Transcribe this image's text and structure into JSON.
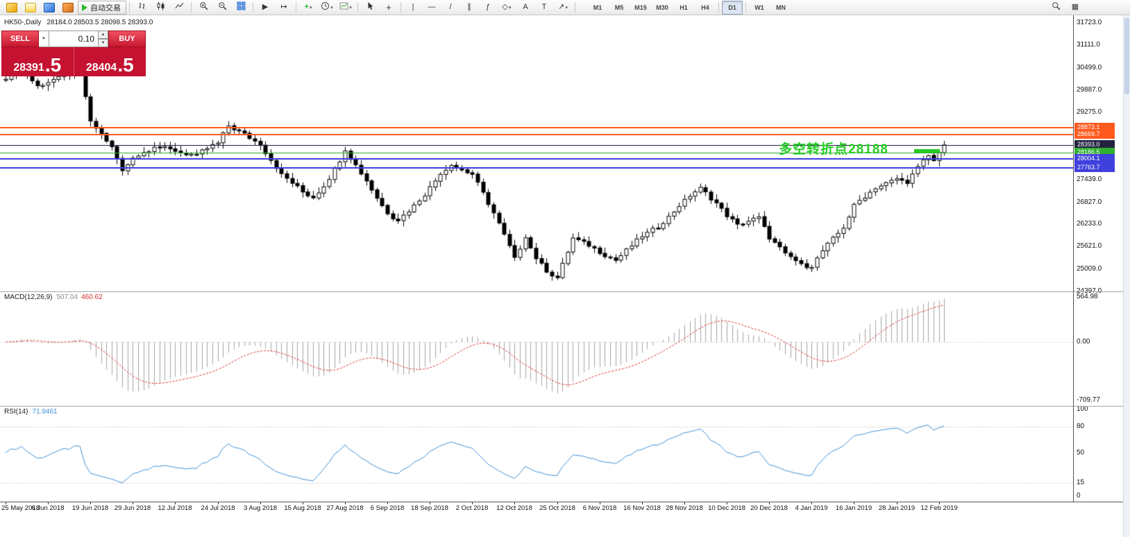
{
  "toolbar": {
    "buttons": [
      {
        "name": "new-order",
        "type": "ci",
        "cls": "ci-gold"
      },
      {
        "name": "charts",
        "type": "ci",
        "cls": "ci-chart"
      },
      {
        "name": "market-watch",
        "type": "ci",
        "cls": "ci-blue"
      },
      {
        "name": "navigator",
        "type": "ci",
        "cls": "ci-mix"
      },
      {
        "name": "autotrading",
        "type": "autotrade",
        "label": "自动交易"
      },
      {
        "type": "sep"
      },
      {
        "name": "bar-chart",
        "type": "svg",
        "icon": "bars"
      },
      {
        "name": "candlestick-chart",
        "type": "svg",
        "icon": "candles"
      },
      {
        "name": "line-chart",
        "type": "svg",
        "icon": "line"
      },
      {
        "type": "sep"
      },
      {
        "name": "zoom-in",
        "type": "svg",
        "icon": "zoomin"
      },
      {
        "name": "zoom-out",
        "type": "svg",
        "icon": "zoomout"
      },
      {
        "name": "tile-windows",
        "type": "svg",
        "icon": "grid"
      },
      {
        "type": "sep"
      },
      {
        "name": "auto-scroll",
        "type": "glyph",
        "glyph": "▶"
      },
      {
        "name": "chart-shift",
        "type": "glyph",
        "glyph": "↦"
      },
      {
        "type": "sep"
      },
      {
        "name": "indicators",
        "type": "glyph",
        "glyph": "+",
        "color": "#2db82d",
        "bold": true,
        "dd": true
      },
      {
        "name": "periods",
        "type": "svg",
        "icon": "clock",
        "dd": true
      },
      {
        "name": "templates",
        "type": "svg",
        "icon": "template",
        "dd": true
      },
      {
        "type": "sep"
      },
      {
        "name": "cursor",
        "type": "svg",
        "icon": "cursor"
      },
      {
        "name": "crosshair",
        "type": "glyph",
        "glyph": "+",
        "big": true
      },
      {
        "type": "sep"
      },
      {
        "name": "vertical-line",
        "type": "glyph",
        "glyph": "|"
      },
      {
        "name": "horizontal-line",
        "type": "glyph",
        "glyph": "—"
      },
      {
        "name": "trendline",
        "type": "glyph",
        "glyph": "/"
      },
      {
        "name": "equidistant-channel",
        "type": "glyph",
        "glyph": "∥"
      },
      {
        "name": "fibonacci",
        "type": "glyph",
        "glyph": "ƒ"
      },
      {
        "name": "shapes",
        "type": "glyph",
        "glyph": "◇",
        "dd": true
      },
      {
        "name": "text",
        "type": "glyph",
        "glyph": "A"
      },
      {
        "name": "text-label",
        "type": "glyph",
        "glyph": "T"
      },
      {
        "name": "arrows",
        "type": "glyph",
        "glyph": "↗",
        "dd": true
      },
      {
        "type": "sep"
      }
    ],
    "timeframes": [
      "M1",
      "M5",
      "M15",
      "M30",
      "H1",
      "H4",
      "D1",
      "W1",
      "MN"
    ],
    "active_timeframe": "D1",
    "right_buttons": [
      {
        "name": "search",
        "type": "svg",
        "icon": "search"
      },
      {
        "name": "data-window",
        "type": "glyph",
        "glyph": "▦"
      }
    ]
  },
  "chart": {
    "info": {
      "symbol_period": "HK50-,Daily",
      "ohlc": "28184.0 28503.5 28098.5 28393.0"
    },
    "price_axis_labels": [
      "31723.0",
      "31111.0",
      "30499.0",
      "29887.0",
      "29275.0",
      "27439.0",
      "26827.0",
      "26233.0",
      "25621.0",
      "25009.0",
      "24397.0"
    ],
    "levels": [
      {
        "label": "28873.1",
        "price": 28873.1,
        "color": "#ff5a1e",
        "width": 2
      },
      {
        "label": "28669.7",
        "price": 28669.7,
        "color": "#ff5a1e",
        "width": 2
      },
      {
        "label": "28393.0",
        "price": 28393.0,
        "color": "#23233f",
        "width": 1,
        "is_current_price": true
      },
      {
        "label": "28186.5",
        "price": 28186.5,
        "color": "#2fae2f",
        "width": 1
      },
      {
        "label": "28004.1",
        "price": 28004.1,
        "color": "#4040dd",
        "width": 2
      },
      {
        "label": "27763.7",
        "price": 27763.7,
        "color": "#4040dd",
        "width": 2
      }
    ],
    "annotation": {
      "text": "多空转折点28188",
      "color": "#25cc25"
    }
  },
  "trade_panel": {
    "sell_label": "SELL",
    "buy_label": "BUY",
    "volume": "0.10",
    "sell_price_main": "28391",
    "sell_price_pips": ".5",
    "buy_price_main": "28404",
    "buy_price_pips": ".5",
    "panel_color": "#c41230"
  },
  "chart_data": {
    "type": "candlestick",
    "symbol": "HK50-",
    "period": "Daily",
    "last_bar_ohlc": {
      "open": 28184.0,
      "high": 28503.5,
      "low": 28098.5,
      "close": 28393.0
    },
    "price_axis": {
      "min": 24397.0,
      "max": 31723.0
    },
    "visible_bars": 178,
    "bars_per_date_tick": 8,
    "close_anchors": [
      [
        0,
        30200
      ],
      [
        3,
        30420
      ],
      [
        6,
        30020
      ],
      [
        10,
        30230
      ],
      [
        14,
        30420
      ],
      [
        16,
        29050
      ],
      [
        20,
        28320
      ],
      [
        22,
        27680
      ],
      [
        24,
        28060
      ],
      [
        28,
        28330
      ],
      [
        32,
        28230
      ],
      [
        36,
        28120
      ],
      [
        40,
        28440
      ],
      [
        42,
        28930
      ],
      [
        44,
        28780
      ],
      [
        48,
        28380
      ],
      [
        52,
        27620
      ],
      [
        56,
        27090
      ],
      [
        58,
        26950
      ],
      [
        61,
        27480
      ],
      [
        64,
        28230
      ],
      [
        68,
        27420
      ],
      [
        72,
        26520
      ],
      [
        74,
        26310
      ],
      [
        78,
        26890
      ],
      [
        82,
        27590
      ],
      [
        84,
        27830
      ],
      [
        88,
        27610
      ],
      [
        92,
        26520
      ],
      [
        96,
        25330
      ],
      [
        98,
        25880
      ],
      [
        100,
        25280
      ],
      [
        102,
        24920
      ],
      [
        104,
        24780
      ],
      [
        107,
        25860
      ],
      [
        110,
        25620
      ],
      [
        115,
        25260
      ],
      [
        120,
        25880
      ],
      [
        124,
        26280
      ],
      [
        128,
        26880
      ],
      [
        131,
        27240
      ],
      [
        134,
        26820
      ],
      [
        136,
        26430
      ],
      [
        138,
        26210
      ],
      [
        142,
        26440
      ],
      [
        144,
        25830
      ],
      [
        147,
        25420
      ],
      [
        150,
        25160
      ],
      [
        152,
        25070
      ],
      [
        154,
        25490
      ],
      [
        158,
        26140
      ],
      [
        160,
        26780
      ],
      [
        164,
        27190
      ],
      [
        168,
        27490
      ],
      [
        170,
        27360
      ],
      [
        172,
        27780
      ],
      [
        174,
        28090
      ],
      [
        175,
        27960
      ],
      [
        176,
        28184
      ],
      [
        177,
        28393
      ]
    ],
    "date_labels": [
      "25 May 2018",
      "6 Jun 2018",
      "19 Jun 2018",
      "29 Jun 2018",
      "12 Jul 2018",
      "24 Jul 2018",
      "3 Aug 2018",
      "15 Aug 2018",
      "27 Aug 2018",
      "6 Sep 2018",
      "18 Sep 2018",
      "2 Oct 2018",
      "12 Oct 2018",
      "25 Oct 2018",
      "6 Nov 2018",
      "16 Nov 2018",
      "28 Nov 2018",
      "10 Dec 2018",
      "20 Dec 2018",
      "4 Jan 2019",
      "16 Jan 2019",
      "28 Jan 2019",
      "12 Feb 2019"
    ]
  },
  "indicators": {
    "macd": {
      "name": "MACD(12,26,9)",
      "value_main": "507.04",
      "value_signal": "460.62",
      "axis_labels": [
        "564.98",
        "0.00",
        "-709.77"
      ],
      "max": 564.98,
      "min": -709.77,
      "histogram_color": "#a3a3a3",
      "signal_color": "#e03030"
    },
    "rsi": {
      "name": "RSI(14)",
      "value": "71.9461",
      "axis_labels": [
        "100",
        "80",
        "50",
        "15",
        "0"
      ],
      "levels": [
        80,
        15
      ],
      "line_color": "#3d8fd8"
    }
  }
}
